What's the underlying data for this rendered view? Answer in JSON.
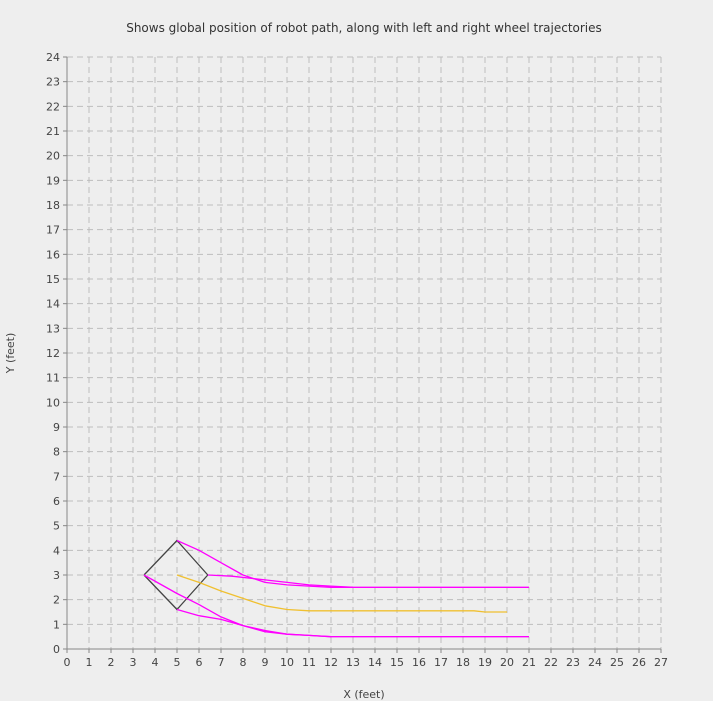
{
  "chart_data": {
    "type": "line",
    "title": "Shows global position of robot path, along with left and right wheel trajectories",
    "xlabel": "X (feet)",
    "ylabel": "Y (feet)",
    "xlim": [
      0,
      27
    ],
    "ylim": [
      0,
      24
    ],
    "x_ticks": [
      "0",
      "1",
      "2",
      "3",
      "4",
      "5",
      "6",
      "7",
      "8",
      "9",
      "10",
      "11",
      "12",
      "13",
      "14",
      "15",
      "16",
      "17",
      "18",
      "19",
      "20",
      "21",
      "22",
      "23",
      "24",
      "25",
      "26",
      "27"
    ],
    "y_ticks": [
      "0",
      "1",
      "2",
      "3",
      "4",
      "5",
      "6",
      "7",
      "8",
      "9",
      "10",
      "11",
      "12",
      "13",
      "14",
      "15",
      "16",
      "17",
      "18",
      "19",
      "20",
      "21",
      "22",
      "23",
      "24"
    ],
    "grid": true,
    "series": [
      {
        "color": "#444444",
        "points": [
          [
            3.5,
            3
          ],
          [
            5,
            4.4
          ],
          [
            6.4,
            3
          ],
          [
            5,
            1.6
          ],
          [
            3.5,
            3
          ]
        ]
      },
      {
        "color": "#f0c030",
        "points": [
          [
            5,
            3
          ],
          [
            6,
            2.7
          ],
          [
            7,
            2.35
          ],
          [
            8,
            2.05
          ],
          [
            9,
            1.75
          ],
          [
            10,
            1.6
          ],
          [
            11,
            1.55
          ],
          [
            13,
            1.55
          ],
          [
            15,
            1.55
          ],
          [
            17,
            1.55
          ],
          [
            18.5,
            1.55
          ],
          [
            19,
            1.5
          ],
          [
            20,
            1.5
          ]
        ]
      },
      {
        "color": "#ff00ff",
        "points": [
          [
            5,
            4.4
          ],
          [
            6,
            4.0
          ],
          [
            7,
            3.5
          ],
          [
            8,
            3.0
          ],
          [
            9,
            2.7
          ],
          [
            10,
            2.6
          ],
          [
            11,
            2.55
          ],
          [
            12,
            2.5
          ],
          [
            15,
            2.5
          ],
          [
            18,
            2.5
          ],
          [
            21,
            2.5
          ]
        ]
      },
      {
        "color": "#ff00ff",
        "points": [
          [
            6.4,
            3
          ],
          [
            7.5,
            2.95
          ],
          [
            9,
            2.8
          ],
          [
            10,
            2.7
          ],
          [
            11,
            2.6
          ],
          [
            12,
            2.55
          ],
          [
            13,
            2.5
          ]
        ]
      },
      {
        "color": "#ff00ff",
        "points": [
          [
            3.5,
            3
          ],
          [
            5,
            2.25
          ],
          [
            6,
            1.8
          ],
          [
            7,
            1.3
          ],
          [
            8,
            0.95
          ],
          [
            9,
            0.75
          ],
          [
            10,
            0.6
          ],
          [
            11,
            0.55
          ],
          [
            12,
            0.5
          ],
          [
            15,
            0.5
          ],
          [
            18,
            0.5
          ],
          [
            21,
            0.5
          ]
        ]
      },
      {
        "color": "#ff00ff",
        "points": [
          [
            5,
            1.6
          ],
          [
            6,
            1.35
          ],
          [
            7,
            1.2
          ],
          [
            8,
            0.95
          ],
          [
            9,
            0.7
          ],
          [
            10,
            0.6
          ],
          [
            11,
            0.55
          ],
          [
            12,
            0.5
          ]
        ]
      }
    ]
  }
}
